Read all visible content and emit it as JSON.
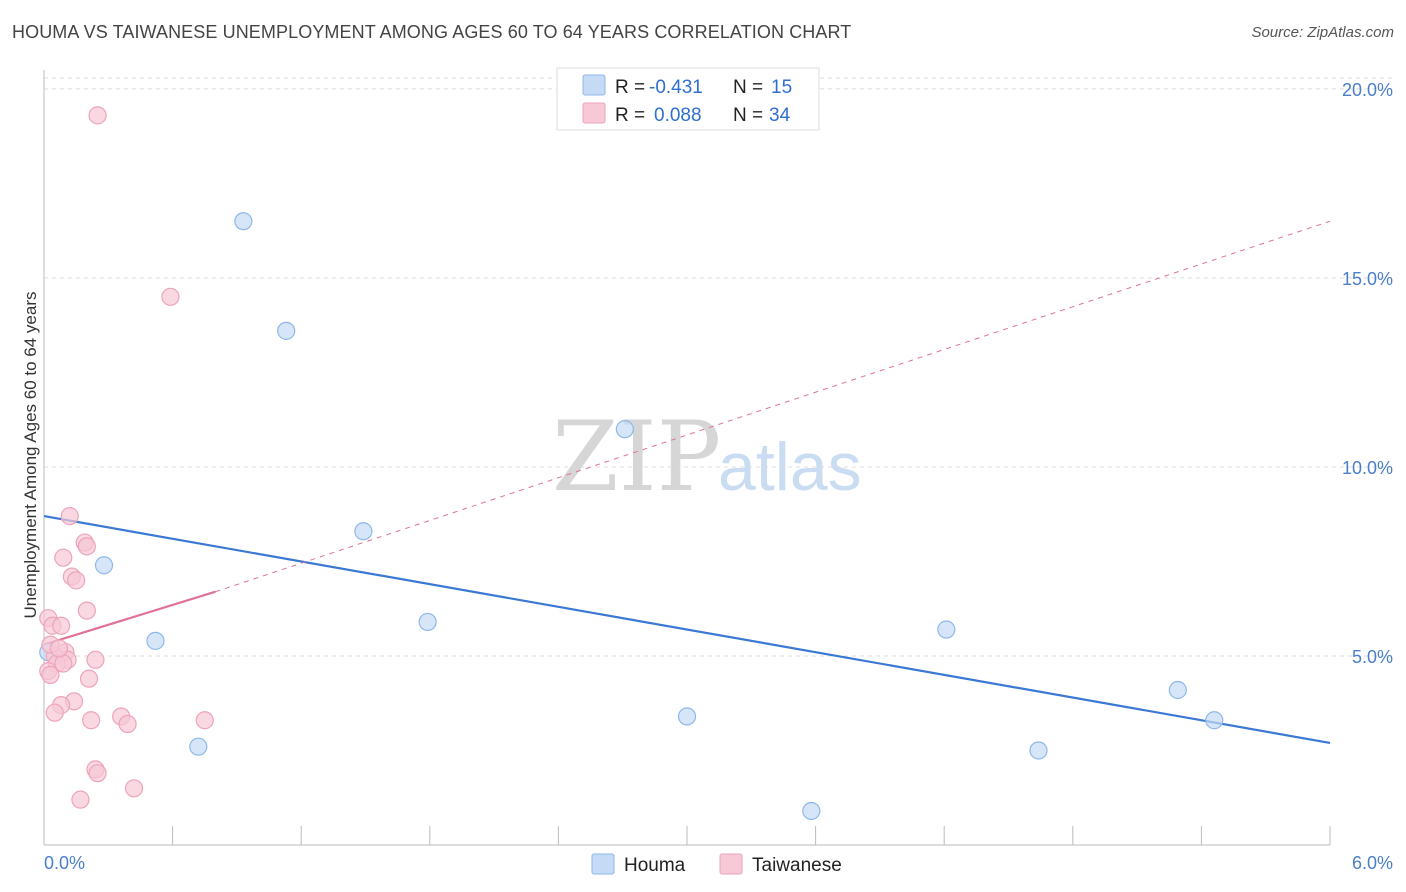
{
  "header": {
    "title": "HOUMA VS TAIWANESE UNEMPLOYMENT AMONG AGES 60 TO 64 YEARS CORRELATION CHART",
    "source": "Source: ZipAtlas.com"
  },
  "watermark": {
    "zip": "ZIP",
    "atlas": "atlas"
  },
  "legend_box": {
    "rows": [
      {
        "series": "Houma",
        "r_label": "R = ",
        "r_value": "-0.431",
        "n_label": "N = ",
        "n_value": "15"
      },
      {
        "series": "Taiwanese",
        "r_label": "R = ",
        "r_value": "0.088",
        "n_label": "N = ",
        "n_value": "34"
      }
    ]
  },
  "chart_data": {
    "type": "scatter",
    "title": "HOUMA VS TAIWANESE UNEMPLOYMENT AMONG AGES 60 TO 64 YEARS CORRELATION CHART",
    "xlabel": "",
    "ylabel": "Unemployment Among Ages 60 to 64 years",
    "xlim": [
      0,
      6
    ],
    "ylim": [
      0,
      20.5
    ],
    "x_tick_labels": [
      {
        "value": 0,
        "label": "0.0%"
      },
      {
        "value": 6,
        "label": "6.0%"
      }
    ],
    "y_tick_labels": [
      {
        "value": 5,
        "label": "5.0%"
      },
      {
        "value": 10,
        "label": "10.0%"
      },
      {
        "value": 15,
        "label": "15.0%"
      },
      {
        "value": 20,
        "label": "20.0%"
      }
    ],
    "x_minor_ticks": [
      0.6,
      1.2,
      1.8,
      2.4,
      3.0,
      3.6,
      4.2,
      4.8,
      5.4,
      6.0
    ],
    "grid": true,
    "series": [
      {
        "name": "Houma",
        "color": "#8fb8ea",
        "fill": "#c5daf5",
        "points": [
          {
            "x": 0.02,
            "y": 5.1
          },
          {
            "x": 0.28,
            "y": 7.4
          },
          {
            "x": 0.52,
            "y": 5.4
          },
          {
            "x": 0.72,
            "y": 2.6
          },
          {
            "x": 0.93,
            "y": 16.5
          },
          {
            "x": 1.13,
            "y": 13.6
          },
          {
            "x": 1.49,
            "y": 8.3
          },
          {
            "x": 1.79,
            "y": 5.9
          },
          {
            "x": 2.71,
            "y": 11.0
          },
          {
            "x": 3.0,
            "y": 3.4
          },
          {
            "x": 3.58,
            "y": 0.9
          },
          {
            "x": 4.21,
            "y": 5.7
          },
          {
            "x": 4.64,
            "y": 2.5
          },
          {
            "x": 5.29,
            "y": 4.1
          },
          {
            "x": 5.46,
            "y": 3.3
          }
        ],
        "trend": {
          "x0": 0,
          "y0": 8.7,
          "x1": 6,
          "y1": 2.7,
          "style": "solid",
          "color": "#3a78d4"
        }
      },
      {
        "name": "Taiwanese",
        "color": "#eda4ba",
        "fill": "#f7c8d6",
        "points": [
          {
            "x": 0.25,
            "y": 19.3
          },
          {
            "x": 0.59,
            "y": 14.5
          },
          {
            "x": 0.12,
            "y": 8.7
          },
          {
            "x": 0.19,
            "y": 8.0
          },
          {
            "x": 0.2,
            "y": 7.9
          },
          {
            "x": 0.09,
            "y": 7.6
          },
          {
            "x": 0.13,
            "y": 7.1
          },
          {
            "x": 0.15,
            "y": 7.0
          },
          {
            "x": 0.2,
            "y": 6.2
          },
          {
            "x": 0.02,
            "y": 6.0
          },
          {
            "x": 0.04,
            "y": 5.8
          },
          {
            "x": 0.08,
            "y": 5.8
          },
          {
            "x": 0.1,
            "y": 5.1
          },
          {
            "x": 0.05,
            "y": 5.0
          },
          {
            "x": 0.11,
            "y": 4.9
          },
          {
            "x": 0.24,
            "y": 4.9
          },
          {
            "x": 0.06,
            "y": 4.8
          },
          {
            "x": 0.09,
            "y": 4.8
          },
          {
            "x": 0.02,
            "y": 4.6
          },
          {
            "x": 0.03,
            "y": 4.5
          },
          {
            "x": 0.21,
            "y": 4.4
          },
          {
            "x": 0.14,
            "y": 3.8
          },
          {
            "x": 0.08,
            "y": 3.7
          },
          {
            "x": 0.05,
            "y": 3.5
          },
          {
            "x": 0.36,
            "y": 3.4
          },
          {
            "x": 0.22,
            "y": 3.3
          },
          {
            "x": 0.75,
            "y": 3.3
          },
          {
            "x": 0.39,
            "y": 3.2
          },
          {
            "x": 0.24,
            "y": 2.0
          },
          {
            "x": 0.25,
            "y": 1.9
          },
          {
            "x": 0.42,
            "y": 1.5
          },
          {
            "x": 0.17,
            "y": 1.2
          },
          {
            "x": 0.03,
            "y": 5.3
          },
          {
            "x": 0.07,
            "y": 5.2
          }
        ],
        "trend": {
          "x0": 0,
          "y0": 5.3,
          "x1": 0.8,
          "y1": 6.7,
          "x2": 6,
          "y2": 16.5,
          "style": "solid-then-dashed",
          "color": "#e07298"
        }
      }
    ]
  }
}
